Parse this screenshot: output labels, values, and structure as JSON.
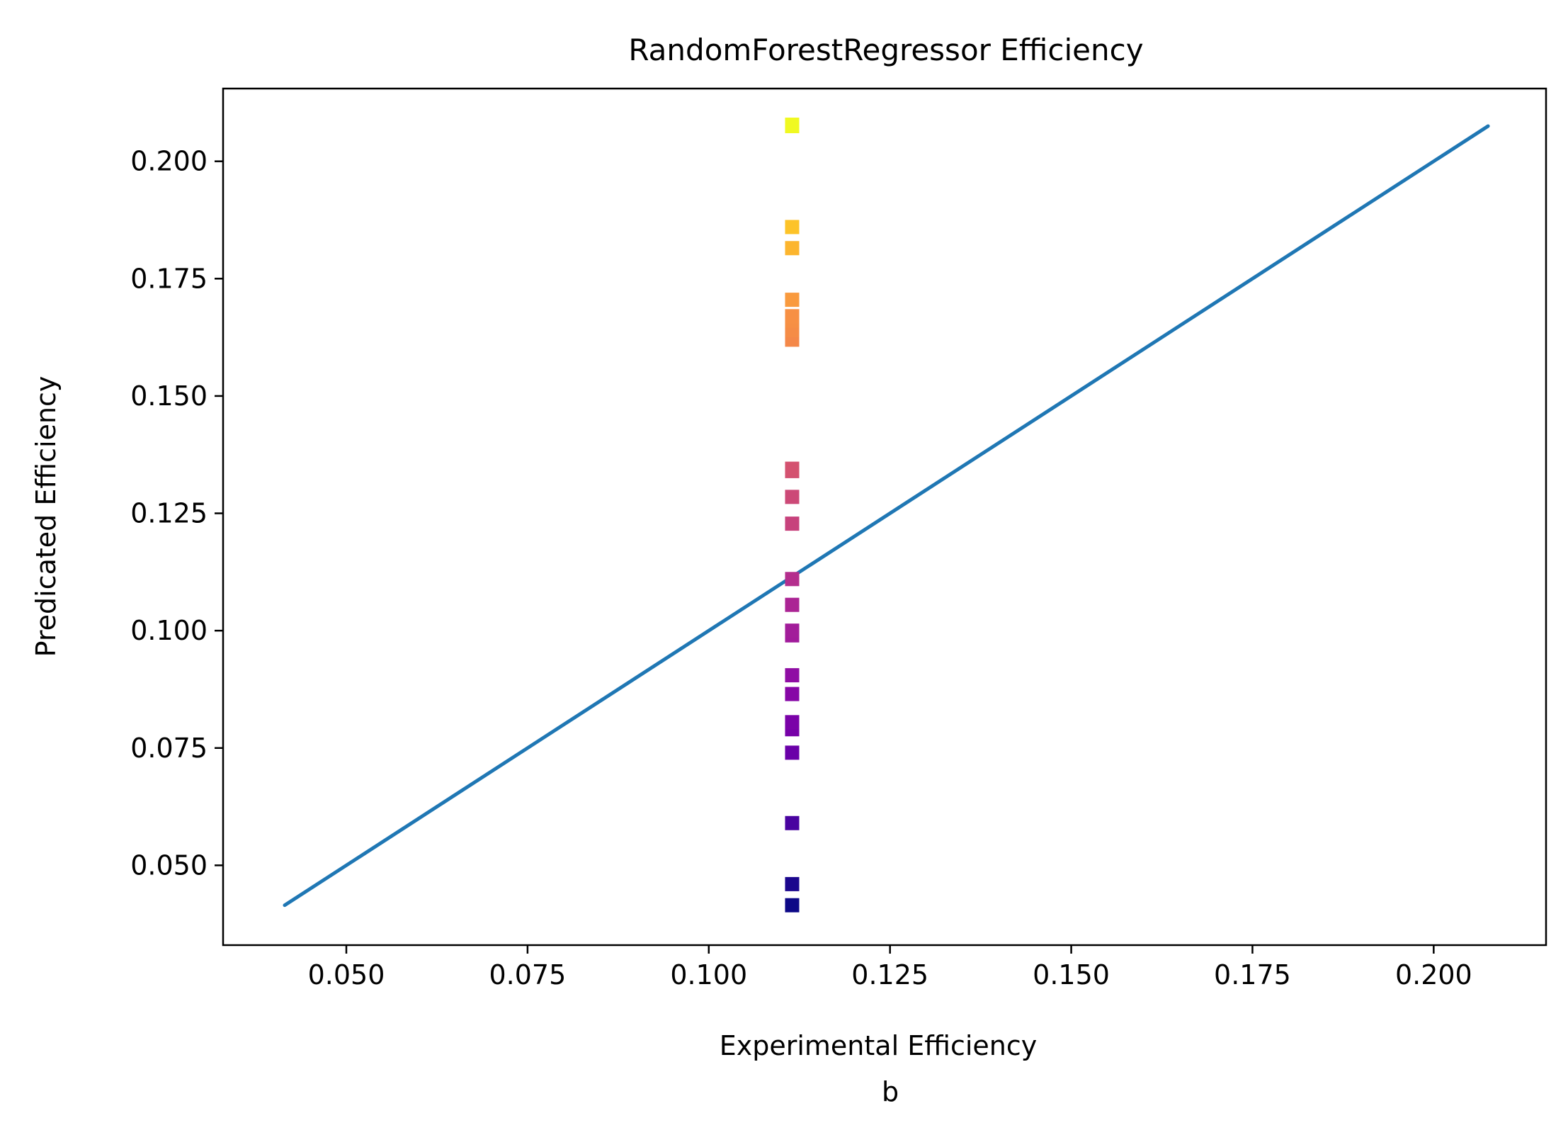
{
  "chart_data": {
    "type": "scatter",
    "title": "RandomForestRegressor Efficiency",
    "xlabel": "Experimental Efficiency",
    "ylabel": "Predicated Efficiency",
    "caption": "b",
    "xlim": [
      0.033,
      0.2155
    ],
    "ylim": [
      0.033,
      0.2155
    ],
    "xticks": [
      0.05,
      0.075,
      0.1,
      0.125,
      0.15,
      0.175,
      0.2
    ],
    "xtick_labels": [
      "0.050",
      "0.075",
      "0.100",
      "0.125",
      "0.150",
      "0.175",
      "0.200"
    ],
    "yticks": [
      0.05,
      0.075,
      0.1,
      0.125,
      0.15,
      0.175,
      0.2
    ],
    "ytick_labels": [
      "0.050",
      "0.075",
      "0.100",
      "0.125",
      "0.150",
      "0.175",
      "0.200"
    ],
    "grid": false,
    "legend": "none",
    "reference_line": {
      "x": [
        0.0415,
        0.2075
      ],
      "y": [
        0.0415,
        0.2075
      ],
      "color": "#1f77b4"
    },
    "colormap": "plasma",
    "series": [
      {
        "x": [
          0.1115,
          0.1115,
          0.1115,
          0.1115,
          0.1115,
          0.1115,
          0.1115,
          0.1115,
          0.1115,
          0.1115,
          0.1115,
          0.1115,
          0.1115,
          0.1115,
          0.1115,
          0.1115,
          0.1115,
          0.1115,
          0.1115,
          0.1115,
          0.1115,
          0.1115,
          0.1115,
          0.1115,
          0.1115
        ],
        "y": [
          0.0415,
          0.046,
          0.059,
          0.074,
          0.079,
          0.0805,
          0.0865,
          0.0905,
          0.099,
          0.1,
          0.1055,
          0.111,
          0.1228,
          0.1285,
          0.134,
          0.1345,
          0.162,
          0.164,
          0.166,
          0.167,
          0.1705,
          0.1815,
          0.186,
          0.2075,
          0.2078
        ],
        "colors": [
          "#0d0887",
          "#1b068d",
          "#4903a0",
          "#6a00a8",
          "#7701a8",
          "#7a02a8",
          "#8606a6",
          "#8f0da4",
          "#a11b9b",
          "#a21d9a",
          "#ab2494",
          "#b42e8d",
          "#c7427c",
          "#cc4977",
          "#d35171",
          "#d45270",
          "#f48849",
          "#f58c46",
          "#f68f44",
          "#f79044",
          "#f99a3e",
          "#fcb52e",
          "#fdc328",
          "#f0f921",
          "#f0f921"
        ]
      }
    ]
  }
}
